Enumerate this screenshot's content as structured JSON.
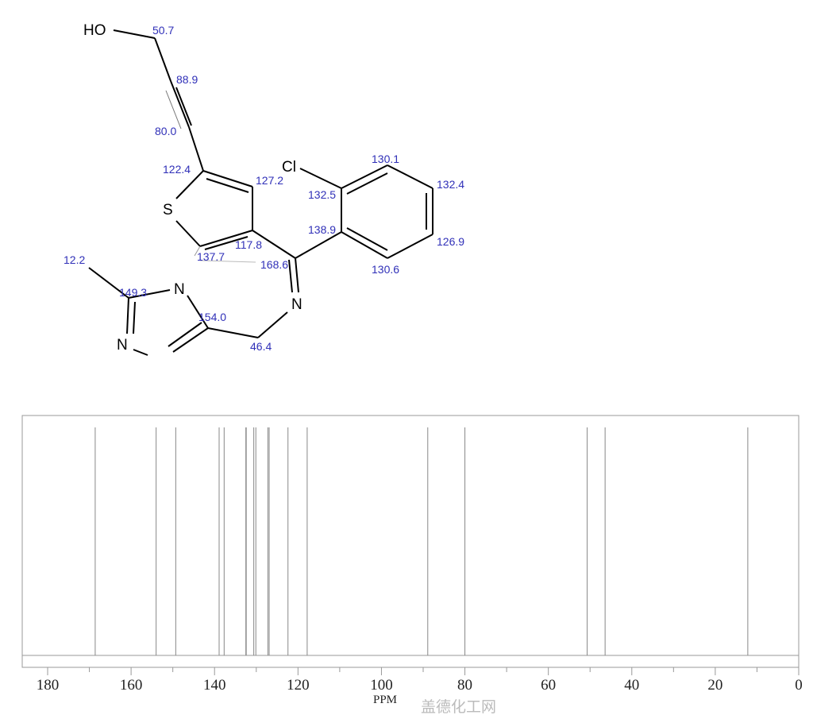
{
  "molecule": {
    "atoms": {
      "ho": "HO",
      "s": "S",
      "cl": "Cl",
      "n_imine": "N",
      "n1": "N",
      "n3": "N"
    },
    "shift_labels": [
      "50.7",
      "88.9",
      "80.0",
      "122.4",
      "127.2",
      "117.8",
      "137.7",
      "168.6",
      "132.5",
      "130.1",
      "132.4",
      "126.9",
      "130.6",
      "138.9",
      "12.2",
      "149.3",
      "154.0",
      "46.4"
    ]
  },
  "chart_data": {
    "type": "bar",
    "title": "",
    "xlabel": "PPM",
    "ylabel": "",
    "xlim": [
      185,
      0
    ],
    "x_reversed": true,
    "xticks": [
      180,
      160,
      140,
      120,
      100,
      80,
      60,
      40,
      20,
      0
    ],
    "minor_tick_step": 10,
    "grid": false,
    "peaks": [
      168.6,
      154.0,
      149.3,
      138.9,
      137.7,
      132.5,
      132.4,
      130.6,
      130.1,
      127.2,
      126.9,
      122.4,
      117.8,
      88.9,
      80.0,
      50.7,
      46.4,
      12.2
    ],
    "peak_color": "#888888"
  },
  "watermark": "盖德化工网"
}
